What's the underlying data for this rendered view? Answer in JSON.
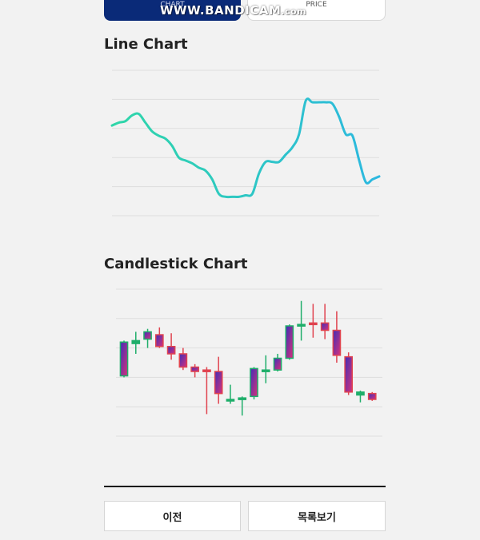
{
  "tabs": {
    "chart_label": "CHART",
    "price_label": "PRICE"
  },
  "watermark": {
    "main": "WWW.BANDICAM",
    "suffix": ".com"
  },
  "line_section": {
    "title": "Line Chart"
  },
  "candle_section": {
    "title": "Candlestick Chart"
  },
  "buttons": {
    "prev_label": "이전",
    "list_label": "목록보기"
  },
  "colors": {
    "line_start": "#2fd6a8",
    "line_end": "#2cb8e0",
    "candle_up": "#1fae6a",
    "candle_down": "#e0434f",
    "candle_body_grad_a": "#3f2fb8",
    "candle_body_grad_b": "#d8307a",
    "tab_active": "#0a2a78"
  },
  "chart_data": [
    {
      "type": "line",
      "title": "Line Chart",
      "x": [
        0,
        1,
        2,
        3,
        4,
        5,
        6,
        7,
        8,
        9,
        10,
        11,
        12,
        13,
        14,
        15,
        16,
        17,
        18,
        19,
        20,
        21,
        22,
        23,
        24,
        25,
        26,
        27,
        28,
        29,
        30,
        31,
        32,
        33,
        34,
        35,
        36,
        37,
        38,
        39,
        40
      ],
      "values": [
        62,
        64,
        65,
        69,
        70,
        64,
        58,
        55,
        53,
        48,
        40,
        38,
        36,
        33,
        31,
        25,
        15,
        13,
        13,
        13,
        14,
        15,
        29,
        37,
        37,
        37,
        42,
        47,
        56,
        79,
        78,
        78,
        78,
        77,
        68,
        56,
        55,
        38,
        23,
        25,
        27
      ],
      "ylim": [
        0,
        100
      ],
      "grid": true
    },
    {
      "type": "candlestick",
      "title": "Candlestick Chart",
      "x": [
        0,
        1,
        2,
        3,
        4,
        5,
        6,
        7,
        8,
        9,
        10,
        11,
        12,
        13,
        14,
        15,
        16,
        17,
        18,
        19,
        20,
        21
      ],
      "open": [
        41,
        63,
        66,
        69,
        61,
        56,
        47,
        45,
        44,
        24,
        25,
        27,
        44,
        45,
        53,
        75,
        77,
        77,
        72,
        54,
        28,
        29
      ],
      "close": [
        64,
        65,
        71,
        61,
        56,
        47,
        44,
        44,
        29,
        25,
        26,
        46,
        45,
        53,
        75,
        76,
        76,
        72,
        55,
        30,
        30,
        25
      ],
      "high": [
        65,
        71,
        73,
        74,
        70,
        60,
        49,
        47,
        54,
        35,
        27,
        47,
        55,
        56,
        76,
        92,
        90,
        90,
        85,
        57,
        31,
        30
      ],
      "low": [
        40,
        56,
        60,
        60,
        52,
        45,
        40,
        15,
        22,
        22,
        14,
        25,
        36,
        44,
        52,
        65,
        67,
        66,
        50,
        28,
        23,
        24
      ],
      "ylim": [
        0,
        100
      ],
      "grid": true
    }
  ]
}
